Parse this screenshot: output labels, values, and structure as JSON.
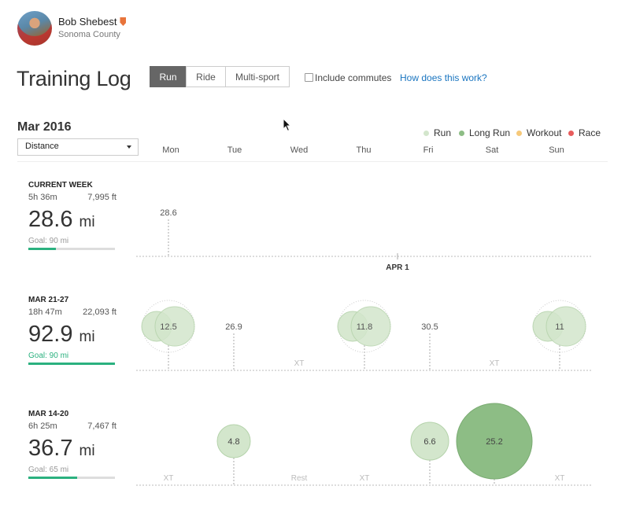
{
  "athlete": {
    "name": "Bob Shebest",
    "location": "Sonoma County",
    "badge": "shield-icon"
  },
  "title": "Training Log",
  "sport_tabs": [
    {
      "label": "Run",
      "active": true
    },
    {
      "label": "Ride",
      "active": false
    },
    {
      "label": "Multi-sport",
      "active": false
    }
  ],
  "include_commutes": {
    "label": "Include commutes",
    "checked": false
  },
  "how_link": "How does this work?",
  "month": "Mar 2016",
  "metric_select": "Distance",
  "legend": [
    {
      "label": "Run",
      "color": "#d3e6cc"
    },
    {
      "label": "Long Run",
      "color": "#8dbd85"
    },
    {
      "label": "Workout",
      "color": "#f6c97a"
    },
    {
      "label": "Race",
      "color": "#e85c5c"
    }
  ],
  "days": [
    "Mon",
    "Tue",
    "Wed",
    "Thu",
    "Fri",
    "Sat",
    "Sun"
  ],
  "weeks": [
    {
      "label": "CURRENT WEEK",
      "time": "5h 36m",
      "elevation": "7,995 ft",
      "distance": "28.6",
      "unit": "mi",
      "goal": "Goal: 90 mi",
      "goal_progress": 0.32,
      "goal_met": false,
      "marker_text": "APR 1",
      "entries": [
        {
          "day": 0,
          "label": "28.6",
          "kind": "line"
        }
      ]
    },
    {
      "label": "MAR 21-27",
      "time": "18h 47m",
      "elevation": "22,093 ft",
      "distance": "92.9",
      "unit": "mi",
      "goal": "Goal: 90 mi",
      "goal_progress": 1.0,
      "goal_met": true,
      "entries": [
        {
          "day": 0,
          "label": "12.5",
          "kind": "bubble",
          "double": true
        },
        {
          "day": 1,
          "label": "26.9",
          "kind": "line"
        },
        {
          "day": 2,
          "label": "XT",
          "kind": "text"
        },
        {
          "day": 3,
          "label": "11.8",
          "kind": "bubble",
          "double": true
        },
        {
          "day": 4,
          "label": "30.5",
          "kind": "line"
        },
        {
          "day": 5,
          "label": "XT",
          "kind": "text"
        },
        {
          "day": 6,
          "label": "11",
          "kind": "bubble",
          "double": true
        }
      ]
    },
    {
      "label": "MAR 14-20",
      "time": "6h 25m",
      "elevation": "7,467 ft",
      "distance": "36.7",
      "unit": "mi",
      "goal": "Goal: 65 mi",
      "goal_progress": 0.56,
      "goal_met": false,
      "entries": [
        {
          "day": 0,
          "label": "XT",
          "kind": "text"
        },
        {
          "day": 1,
          "label": "4.8",
          "kind": "bubble",
          "size": "s"
        },
        {
          "day": 2,
          "label": "Rest",
          "kind": "text"
        },
        {
          "day": 3,
          "label": "XT",
          "kind": "text"
        },
        {
          "day": 4,
          "label": "6.6",
          "kind": "bubble",
          "size": "m"
        },
        {
          "day": 5,
          "label": "25.2",
          "kind": "bubble",
          "size": "l",
          "long": true
        },
        {
          "day": 6,
          "label": "XT",
          "kind": "text"
        }
      ]
    }
  ]
}
